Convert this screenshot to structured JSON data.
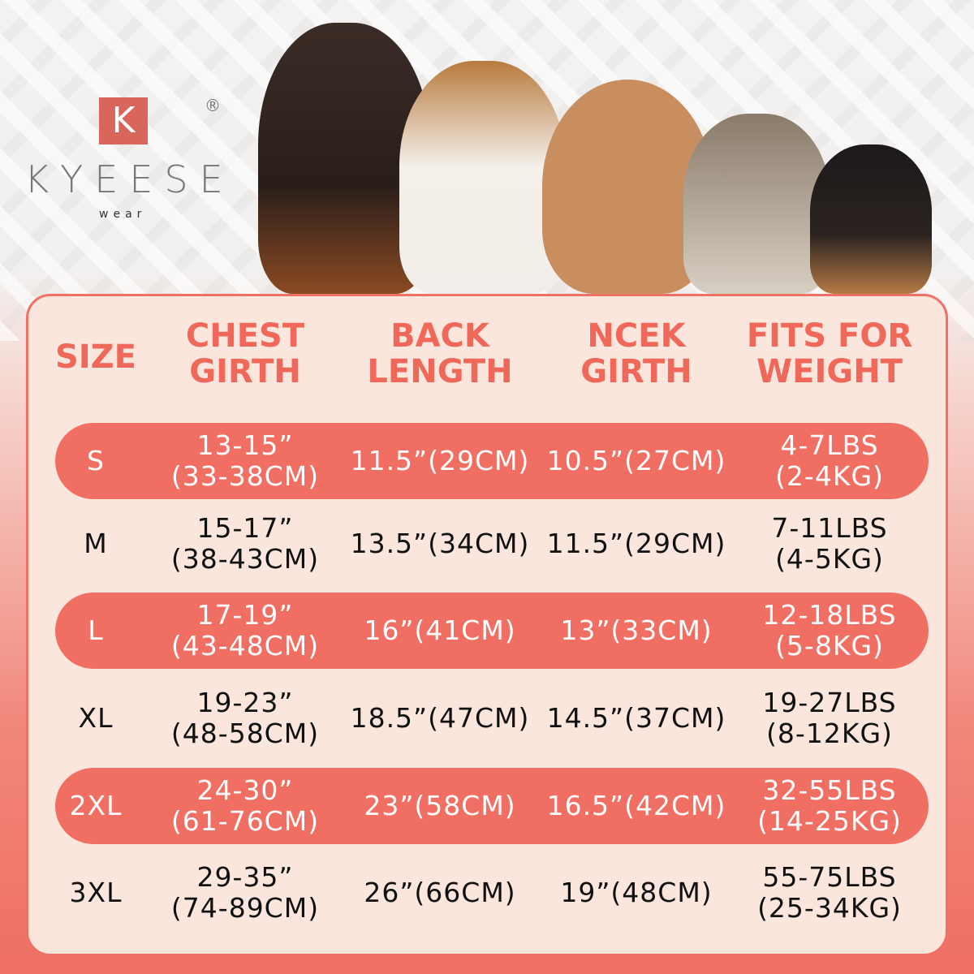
{
  "brand": {
    "logo_letter": "K",
    "name": "KYEESE",
    "sub": "wear",
    "registered": "®"
  },
  "colors": {
    "accent": "#f0685a",
    "card": "#fbe6dd"
  },
  "headers": [
    "SIZE",
    "CHEST\nGIRTH",
    "BACK\nLENGTH",
    "NCEK\nGIRTH",
    "FITS FOR\nWEIGHT"
  ],
  "rows": [
    {
      "size": "S",
      "chest": "13-15”\n(33-38CM)",
      "back": "11.5”(29CM)",
      "neck": "10.5”(27CM)",
      "weight": "4-7LBS\n(2-4KG)",
      "highlight": true
    },
    {
      "size": "M",
      "chest": "15-17”\n(38-43CM)",
      "back": "13.5”(34CM)",
      "neck": "11.5”(29CM)",
      "weight": "7-11LBS\n(4-5KG)",
      "highlight": false
    },
    {
      "size": "L",
      "chest": "17-19”\n(43-48CM)",
      "back": "16”(41CM)",
      "neck": "13”(33CM)",
      "weight": "12-18LBS\n(5-8KG)",
      "highlight": true
    },
    {
      "size": "XL",
      "chest": "19-23”\n(48-58CM)",
      "back": "18.5”(47CM)",
      "neck": "14.5”(37CM)",
      "weight": "19-27LBS\n(8-12KG)",
      "highlight": false
    },
    {
      "size": "2XL",
      "chest": "24-30”\n(61-76CM)",
      "back": "23”(58CM)",
      "neck": "16.5”(42CM)",
      "weight": "32-55LBS\n(14-25KG)",
      "highlight": true
    },
    {
      "size": "3XL",
      "chest": "29-35”\n(74-89CM)",
      "back": "26”(66CM)",
      "neck": "19”(48CM)",
      "weight": "55-75LBS\n(25-34KG)",
      "highlight": false
    }
  ]
}
